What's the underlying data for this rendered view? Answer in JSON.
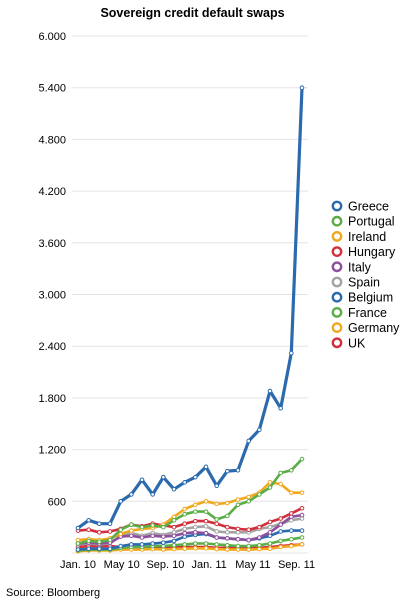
{
  "chart_data": {
    "type": "line",
    "title": "Sovereign credit default swaps",
    "source": "Source: Bloomberg",
    "xlabel": "",
    "ylabel": "",
    "ylim": [
      0,
      6000
    ],
    "y_ticks": [
      "600",
      "1.200",
      "1.800",
      "2.400",
      "3.000",
      "3.600",
      "4.200",
      "4.800",
      "5.400",
      "6.000"
    ],
    "y_tick_values": [
      600,
      1200,
      1800,
      2400,
      3000,
      3600,
      4200,
      4800,
      5400,
      6000
    ],
    "x_ticks": [
      "Jan. 10",
      "May 10",
      "Sep. 10",
      "Jan. 11",
      "May 11",
      "Sep. 11"
    ],
    "x_tick_index": [
      0,
      8,
      16,
      24,
      32,
      40
    ],
    "grid": true,
    "legend_position": "right",
    "series": [
      {
        "name": "Greece",
        "color": "#2a6aad",
        "values": [
          290,
          380,
          340,
          340,
          600,
          680,
          850,
          680,
          880,
          740,
          820,
          880,
          1000,
          780,
          950,
          960,
          1300,
          1430,
          1880,
          1680,
          2320,
          5400
        ]
      },
      {
        "name": "Portugal",
        "color": "#5aad47",
        "values": [
          110,
          140,
          130,
          150,
          270,
          330,
          300,
          320,
          300,
          380,
          450,
          480,
          480,
          390,
          430,
          560,
          600,
          680,
          760,
          930,
          960,
          1090
        ]
      },
      {
        "name": "Ireland",
        "color": "#f0a81e",
        "values": [
          150,
          160,
          150,
          170,
          220,
          260,
          280,
          290,
          330,
          420,
          510,
          560,
          600,
          570,
          580,
          620,
          650,
          700,
          820,
          800,
          700,
          700
        ]
      },
      {
        "name": "Hungary",
        "color": "#d22f3c",
        "values": [
          260,
          270,
          240,
          250,
          280,
          330,
          310,
          340,
          320,
          300,
          340,
          370,
          370,
          340,
          300,
          280,
          270,
          300,
          360,
          400,
          460,
          520
        ]
      },
      {
        "name": "Italy",
        "color": "#8e4e9e",
        "values": [
          110,
          120,
          110,
          120,
          190,
          200,
          180,
          200,
          190,
          200,
          230,
          240,
          230,
          180,
          170,
          160,
          150,
          180,
          240,
          330,
          420,
          440
        ]
      },
      {
        "name": "Spain",
        "color": "#a3a3a3",
        "values": [
          100,
          110,
          100,
          110,
          200,
          230,
          200,
          230,
          210,
          240,
          280,
          300,
          310,
          250,
          240,
          240,
          240,
          280,
          300,
          340,
          380,
          400
        ]
      },
      {
        "name": "Belgium",
        "color": "#2a6aad",
        "values": [
          40,
          50,
          50,
          50,
          80,
          100,
          100,
          110,
          120,
          140,
          190,
          210,
          220,
          180,
          170,
          160,
          150,
          170,
          200,
          250,
          260,
          260
        ]
      },
      {
        "name": "France",
        "color": "#5aad47",
        "values": [
          30,
          40,
          40,
          40,
          60,
          70,
          70,
          80,
          80,
          90,
          100,
          110,
          110,
          100,
          90,
          80,
          80,
          90,
          110,
          140,
          160,
          180
        ]
      },
      {
        "name": "Germany",
        "color": "#f0a81e",
        "values": [
          20,
          30,
          30,
          30,
          40,
          40,
          40,
          45,
          40,
          45,
          50,
          55,
          55,
          45,
          40,
          40,
          40,
          45,
          50,
          70,
          80,
          100
        ]
      },
      {
        "name": "UK",
        "color": "#d22f3c",
        "values": [
          70,
          80,
          80,
          80,
          70,
          70,
          70,
          70,
          70,
          70,
          70,
          70,
          70,
          60,
          60,
          60,
          60,
          60,
          70,
          80,
          90,
          100
        ]
      }
    ]
  }
}
